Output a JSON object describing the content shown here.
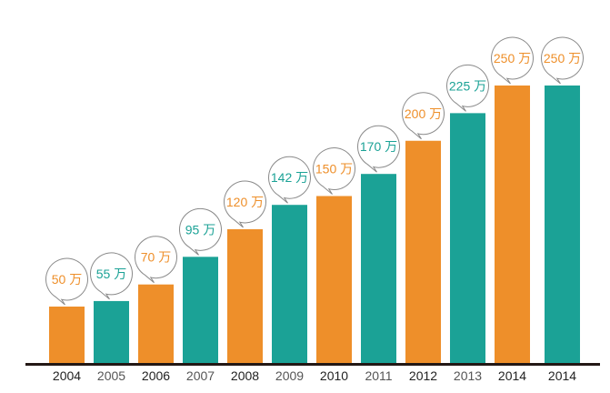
{
  "chart_data": {
    "type": "bar",
    "title": "",
    "xlabel": "",
    "ylabel": "",
    "unit": "万",
    "categories": [
      "2004",
      "2005",
      "2006",
      "2007",
      "2008",
      "2009",
      "2010",
      "2011",
      "2012",
      "2013",
      "2014",
      "2014"
    ],
    "values": [
      50,
      55,
      70,
      95,
      120,
      142,
      150,
      170,
      200,
      225,
      250,
      250
    ],
    "data_labels": [
      "50 万",
      "55 万",
      "70 万",
      "95 万",
      "120 万",
      "142 万",
      "150 万",
      "170 万",
      "200 万",
      "225 万",
      "250 万",
      "250 万"
    ],
    "bar_colors": [
      "#ee8f2a",
      "#1ba296",
      "#ee8f2a",
      "#1ba296",
      "#ee8f2a",
      "#1ba296",
      "#ee8f2a",
      "#1ba296",
      "#ee8f2a",
      "#1ba296",
      "#ee8f2a",
      "#1ba296"
    ],
    "label_colors": [
      "#ee8f2a",
      "#1ba296",
      "#ee8f2a",
      "#1ba296",
      "#ee8f2a",
      "#1ba296",
      "#ee8f2a",
      "#1ba296",
      "#ee8f2a",
      "#1ba296",
      "#ee8f2a",
      "#ee8f2a"
    ],
    "tick_colors": [
      "#222222",
      "#555555",
      "#222222",
      "#555555",
      "#222222",
      "#555555",
      "#222222",
      "#555555",
      "#222222",
      "#555555",
      "#222222",
      "#222222"
    ],
    "ylim": [
      0,
      260
    ],
    "grid": false,
    "legend": "none"
  }
}
